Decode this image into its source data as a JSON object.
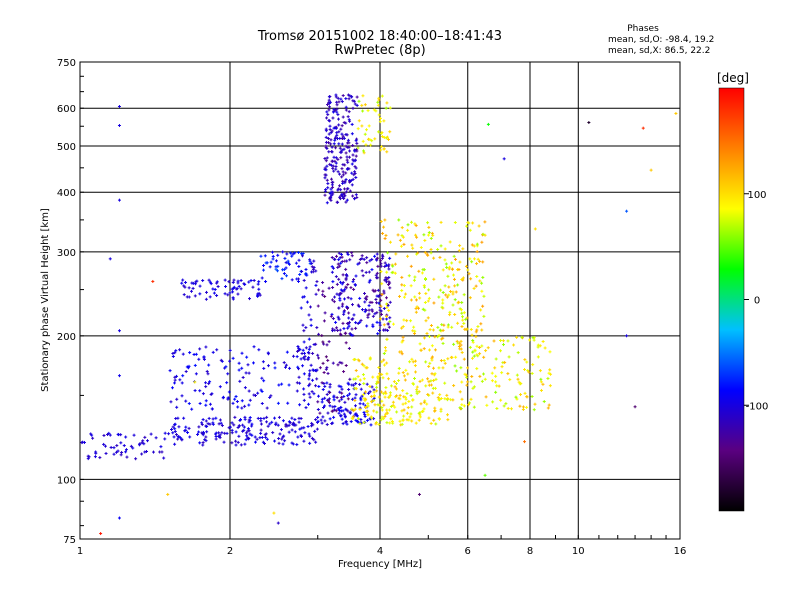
{
  "chart_data": {
    "type": "scatter",
    "title": "Tromsø 20151002 18:40:00–18:41:43",
    "subtitle": "RwPretec (8p)",
    "stats": {
      "heading": "Phases",
      "line1": "mean, sd,O: -98.4, 19.2",
      "line2": "mean, sd,X:  86.5, 22.2"
    },
    "xlabel": "Frequency [MHz]",
    "ylabel": "Stationary phase Virtual Height [km]",
    "x_scale": "log",
    "y_scale": "log",
    "xlim": [
      1,
      16
    ],
    "ylim": [
      75,
      750
    ],
    "x_ticks": [
      1,
      2,
      4,
      6,
      8,
      10,
      16
    ],
    "x_tick_labels": [
      "1",
      "2",
      "4",
      "6",
      "8",
      "10",
      "16"
    ],
    "y_ticks": [
      75,
      100,
      200,
      300,
      400,
      500,
      600,
      750
    ],
    "y_tick_labels": [
      "75",
      "100",
      "200",
      "300",
      "400",
      "500",
      "600",
      "750"
    ],
    "grid": true,
    "colorbar": {
      "unit": "[deg]",
      "range": [
        -200,
        200
      ],
      "ticks": [
        100,
        0,
        -100
      ],
      "tick_labels": [
        "100",
        "0",
        "-100"
      ],
      "colors": [
        "#000000",
        "#5a0080",
        "#0000ff",
        "#00c0ff",
        "#00ff00",
        "#ffff00",
        "#ff8000",
        "#ff0000"
      ]
    },
    "clusters": [
      {
        "x": [
          1.0,
          1.5
        ],
        "y": [
          110,
          125
        ],
        "n": 60,
        "phase": [
          -115,
          -95
        ]
      },
      {
        "x": [
          1.5,
          3.0
        ],
        "y": [
          118,
          135
        ],
        "n": 200,
        "phase": [
          -115,
          -90
        ]
      },
      {
        "x": [
          3.0,
          3.9
        ],
        "y": [
          130,
          160
        ],
        "n": 120,
        "phase": [
          -110,
          -85
        ]
      },
      {
        "x": [
          1.5,
          2.9
        ],
        "y": [
          140,
          190
        ],
        "n": 150,
        "phase": [
          -110,
          -80
        ]
      },
      {
        "x": [
          1.6,
          2.3
        ],
        "y": [
          238,
          262
        ],
        "n": 70,
        "phase": [
          -110,
          -90
        ]
      },
      {
        "x": [
          2.3,
          2.9
        ],
        "y": [
          258,
          300
        ],
        "n": 50,
        "phase": [
          -100,
          -60
        ]
      },
      {
        "x": [
          2.7,
          3.0
        ],
        "y": [
          150,
          300
        ],
        "n": 70,
        "phase": [
          -120,
          -90
        ]
      },
      {
        "x": [
          3.1,
          3.6
        ],
        "y": [
          380,
          640
        ],
        "n": 240,
        "phase": [
          -130,
          -95
        ]
      },
      {
        "x": [
          3.2,
          4.2
        ],
        "y": [
          200,
          300
        ],
        "n": 220,
        "phase": [
          -140,
          -85
        ]
      },
      {
        "x": [
          3.6,
          4.2
        ],
        "y": [
          480,
          640
        ],
        "n": 50,
        "phase": [
          60,
          110
        ]
      },
      {
        "x": [
          3.5,
          5.5
        ],
        "y": [
          130,
          180
        ],
        "n": 240,
        "phase": [
          70,
          120
        ]
      },
      {
        "x": [
          4.0,
          6.5
        ],
        "y": [
          180,
          350
        ],
        "n": 280,
        "phase": [
          60,
          130
        ]
      },
      {
        "x": [
          5.5,
          8.8
        ],
        "y": [
          140,
          200
        ],
        "n": 140,
        "phase": [
          60,
          120
        ]
      },
      {
        "x": [
          3.0,
          3.5
        ],
        "y": [
          135,
          260
        ],
        "n": 60,
        "phase": [
          -150,
          -120
        ]
      }
    ],
    "outliers": [
      {
        "x": 1.2,
        "y": 605,
        "phase": -100
      },
      {
        "x": 1.2,
        "y": 552,
        "phase": -100
      },
      {
        "x": 1.2,
        "y": 385,
        "phase": -100
      },
      {
        "x": 1.15,
        "y": 290,
        "phase": -100
      },
      {
        "x": 1.2,
        "y": 205,
        "phase": -100
      },
      {
        "x": 1.2,
        "y": 165,
        "phase": -95
      },
      {
        "x": 1.1,
        "y": 77,
        "phase": 190
      },
      {
        "x": 1.2,
        "y": 83,
        "phase": -90
      },
      {
        "x": 1.5,
        "y": 93,
        "phase": 110
      },
      {
        "x": 1.7,
        "y": 160,
        "phase": 90
      },
      {
        "x": 2.45,
        "y": 85,
        "phase": 100
      },
      {
        "x": 2.5,
        "y": 81,
        "phase": -110
      },
      {
        "x": 4.8,
        "y": 93,
        "phase": -150
      },
      {
        "x": 6.6,
        "y": 555,
        "phase": 30
      },
      {
        "x": 7.1,
        "y": 470,
        "phase": -100
      },
      {
        "x": 10.5,
        "y": 560,
        "phase": -180
      },
      {
        "x": 12.5,
        "y": 365,
        "phase": -60
      },
      {
        "x": 13.5,
        "y": 545,
        "phase": 180
      },
      {
        "x": 14.0,
        "y": 445,
        "phase": 110
      },
      {
        "x": 15.7,
        "y": 585,
        "phase": 110
      },
      {
        "x": 12.5,
        "y": 200,
        "phase": -100
      },
      {
        "x": 13.0,
        "y": 142,
        "phase": -150
      },
      {
        "x": 7.8,
        "y": 120,
        "phase": 150
      },
      {
        "x": 6.5,
        "y": 102,
        "phase": 50
      },
      {
        "x": 8.2,
        "y": 335,
        "phase": 100
      },
      {
        "x": 1.4,
        "y": 260,
        "phase": 180
      }
    ]
  }
}
